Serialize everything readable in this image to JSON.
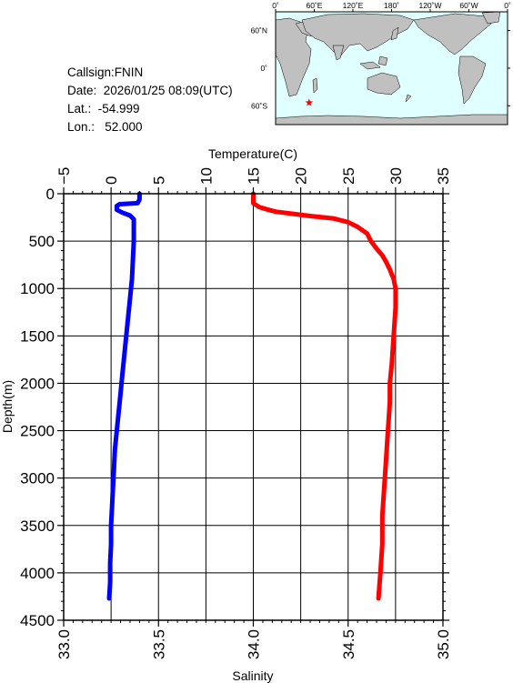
{
  "info": {
    "callsign": "Callsign:FNIN",
    "date": "Date:  2026/01/25 08:09(UTC)",
    "lat": "Lat.:  -54.999",
    "lon": "Lon.:   52.000"
  },
  "map": {
    "top_labels": [
      "0˚",
      "60˚E",
      "120˚E",
      "180˚",
      "120˚W",
      "60˚W",
      "0˚"
    ],
    "right_labels": [
      "60˚N",
      "0˚",
      "60˚S"
    ],
    "ocean_color": "#e0ffff",
    "land_color": "#c0c0c0",
    "marker": {
      "lon": 52.0,
      "lat": -54.999,
      "color": "#ff0000",
      "icon": "star-icon"
    }
  },
  "chart_data": {
    "type": "line",
    "ylabel": "Depth(m)",
    "ylim": [
      4500,
      0
    ],
    "yticks": [
      "0",
      "500",
      "1000",
      "1500",
      "2000",
      "2500",
      "3000",
      "3500",
      "4000",
      "4500"
    ],
    "top_axis": {
      "label": "Temperature(C)",
      "range": [
        -5,
        35
      ],
      "ticks": [
        "−5",
        "0",
        "5",
        "10",
        "15",
        "20",
        "25",
        "30",
        "35"
      ]
    },
    "bottom_axis": {
      "label": "Salinity",
      "range": [
        33.0,
        35.0
      ],
      "ticks": [
        "33.0",
        "33.5",
        "34.0",
        "34.5",
        "35.0"
      ]
    },
    "grid": true,
    "series": [
      {
        "color": "#0000ff",
        "axis": "top",
        "points": [
          [
            3.0,
            0
          ],
          [
            3.0,
            60
          ],
          [
            2.8,
            100
          ],
          [
            0.9,
            110
          ],
          [
            0.6,
            130
          ],
          [
            0.6,
            170
          ],
          [
            1.2,
            200
          ],
          [
            2.0,
            230
          ],
          [
            2.4,
            270
          ],
          [
            2.4,
            350
          ],
          [
            2.4,
            500
          ],
          [
            2.3,
            700
          ],
          [
            2.2,
            900
          ],
          [
            2.0,
            1100
          ],
          [
            1.8,
            1300
          ],
          [
            1.6,
            1500
          ],
          [
            1.4,
            1700
          ],
          [
            1.2,
            1900
          ],
          [
            1.0,
            2100
          ],
          [
            0.8,
            2300
          ],
          [
            0.6,
            2500
          ],
          [
            0.4,
            2700
          ],
          [
            0.3,
            2900
          ],
          [
            0.2,
            3100
          ],
          [
            0.1,
            3300
          ],
          [
            0.0,
            3500
          ],
          [
            0.0,
            3700
          ],
          [
            -0.1,
            3900
          ],
          [
            -0.1,
            4100
          ],
          [
            -0.2,
            4270
          ]
        ]
      },
      {
        "color": "#ff0000",
        "axis": "bottom",
        "points": [
          [
            34.0,
            0
          ],
          [
            34.0,
            100
          ],
          [
            34.03,
            140
          ],
          [
            34.08,
            170
          ],
          [
            34.12,
            190
          ],
          [
            34.2,
            210
          ],
          [
            34.3,
            235
          ],
          [
            34.42,
            260
          ],
          [
            34.5,
            300
          ],
          [
            34.55,
            350
          ],
          [
            34.6,
            420
          ],
          [
            34.62,
            500
          ],
          [
            34.65,
            580
          ],
          [
            34.68,
            650
          ],
          [
            34.7,
            720
          ],
          [
            34.72,
            800
          ],
          [
            34.74,
            900
          ],
          [
            34.75,
            1000
          ],
          [
            34.75,
            1200
          ],
          [
            34.74,
            1500
          ],
          [
            34.73,
            1800
          ],
          [
            34.72,
            2000
          ],
          [
            34.72,
            2200
          ],
          [
            34.71,
            2500
          ],
          [
            34.7,
            2800
          ],
          [
            34.69,
            3100
          ],
          [
            34.68,
            3400
          ],
          [
            34.68,
            3700
          ],
          [
            34.67,
            4000
          ],
          [
            34.66,
            4270
          ]
        ]
      }
    ]
  }
}
